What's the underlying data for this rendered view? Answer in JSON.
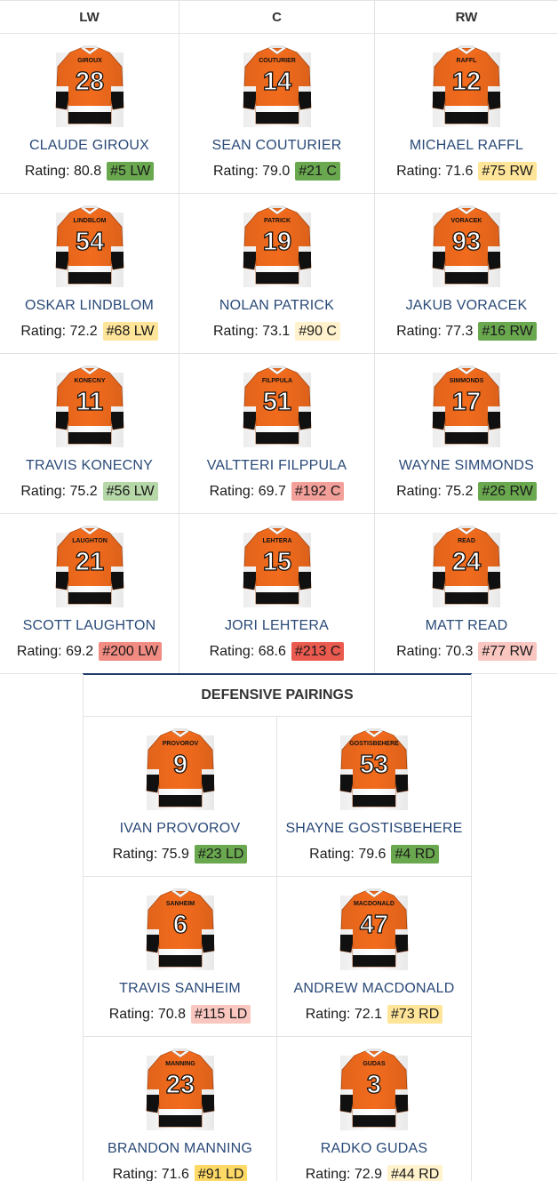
{
  "forwards": {
    "headers": [
      "LW",
      "C",
      "RW"
    ],
    "rows": [
      [
        {
          "number": "28",
          "nameplate": "GIROUX",
          "name": "CLAUDE GIROUX",
          "rating": "Rating: 80.8",
          "rank": "#5 LW",
          "rank_color": "#6aa84f"
        },
        {
          "number": "14",
          "nameplate": "COUTURIER",
          "name": "SEAN COUTURIER",
          "rating": "Rating: 79.0",
          "rank": "#21 C",
          "rank_color": "#6aa84f"
        },
        {
          "number": "12",
          "nameplate": "RAFFL",
          "name": "MICHAEL RAFFL",
          "rating": "Rating: 71.6",
          "rank": "#75 RW",
          "rank_color": "#ffe599"
        }
      ],
      [
        {
          "number": "54",
          "nameplate": "LINDBLOM",
          "name": "OSKAR LINDBLOM",
          "rating": "Rating: 72.2",
          "rank": "#68 LW",
          "rank_color": "#ffe599"
        },
        {
          "number": "19",
          "nameplate": "PATRICK",
          "name": "NOLAN PATRICK",
          "rating": "Rating: 73.1",
          "rank": "#90 C",
          "rank_color": "#fff2cc"
        },
        {
          "number": "93",
          "nameplate": "VORACEK",
          "name": "JAKUB VORACEK",
          "rating": "Rating: 77.3",
          "rank": "#16 RW",
          "rank_color": "#6aa84f"
        }
      ],
      [
        {
          "number": "11",
          "nameplate": "KONECNY",
          "name": "TRAVIS KONECNY",
          "rating": "Rating: 75.2",
          "rank": "#56 LW",
          "rank_color": "#b6d7a8"
        },
        {
          "number": "51",
          "nameplate": "FILPPULA",
          "name": "VALTTERI FILPPULA",
          "rating": "Rating: 69.7",
          "rank": "#192 C",
          "rank_color": "#f4a09a"
        },
        {
          "number": "17",
          "nameplate": "SIMMONDS",
          "name": "WAYNE SIMMONDS",
          "rating": "Rating: 75.2",
          "rank": "#26 RW",
          "rank_color": "#6aa84f"
        }
      ],
      [
        {
          "number": "21",
          "nameplate": "LAUGHTON",
          "name": "SCOTT LAUGHTON",
          "rating": "Rating: 69.2",
          "rank": "#200 LW",
          "rank_color": "#f28b82"
        },
        {
          "number": "15",
          "nameplate": "LEHTERA",
          "name": "JORI LEHTERA",
          "rating": "Rating: 68.6",
          "rank": "#213 C",
          "rank_color": "#ea5a4f"
        },
        {
          "number": "24",
          "nameplate": "READ",
          "name": "MATT READ",
          "rating": "Rating: 70.3",
          "rank": "#77 RW",
          "rank_color": "#f9c6c0"
        }
      ]
    ]
  },
  "defense": {
    "title": "DEFENSIVE PAIRINGS",
    "rows": [
      [
        {
          "number": "9",
          "nameplate": "PROVOROV",
          "name": "IVAN PROVOROV",
          "rating": "Rating: 75.9",
          "rank": "#23 LD",
          "rank_color": "#6aa84f"
        },
        {
          "number": "53",
          "nameplate": "GOSTISBEHERE",
          "name": "SHAYNE GOSTISBEHERE",
          "rating": "Rating: 79.6",
          "rank": "#4 RD",
          "rank_color": "#6aa84f"
        }
      ],
      [
        {
          "number": "6",
          "nameplate": "SANHEIM",
          "name": "TRAVIS SANHEIM",
          "rating": "Rating: 70.8",
          "rank": "#115 LD",
          "rank_color": "#f9c6c0"
        },
        {
          "number": "47",
          "nameplate": "MACDONALD",
          "name": "ANDREW MACDONALD",
          "rating": "Rating: 72.1",
          "rank": "#73 RD",
          "rank_color": "#ffe599"
        }
      ],
      [
        {
          "number": "23",
          "nameplate": "MANNING",
          "name": "BRANDON MANNING",
          "rating": "Rating: 71.6",
          "rank": "#91 LD",
          "rank_color": "#ffd966"
        },
        {
          "number": "3",
          "nameplate": "GUDAS",
          "name": "RADKO GUDAS",
          "rating": "Rating: 72.9",
          "rank": "#44 RD",
          "rank_color": "#fff2cc"
        }
      ]
    ]
  },
  "colors": {
    "jersey_orange": "#f26b1d",
    "jersey_black": "#111111",
    "jersey_white": "#ffffff",
    "name_blue": "#2a4a78",
    "accent_navy": "#1d3a66"
  }
}
